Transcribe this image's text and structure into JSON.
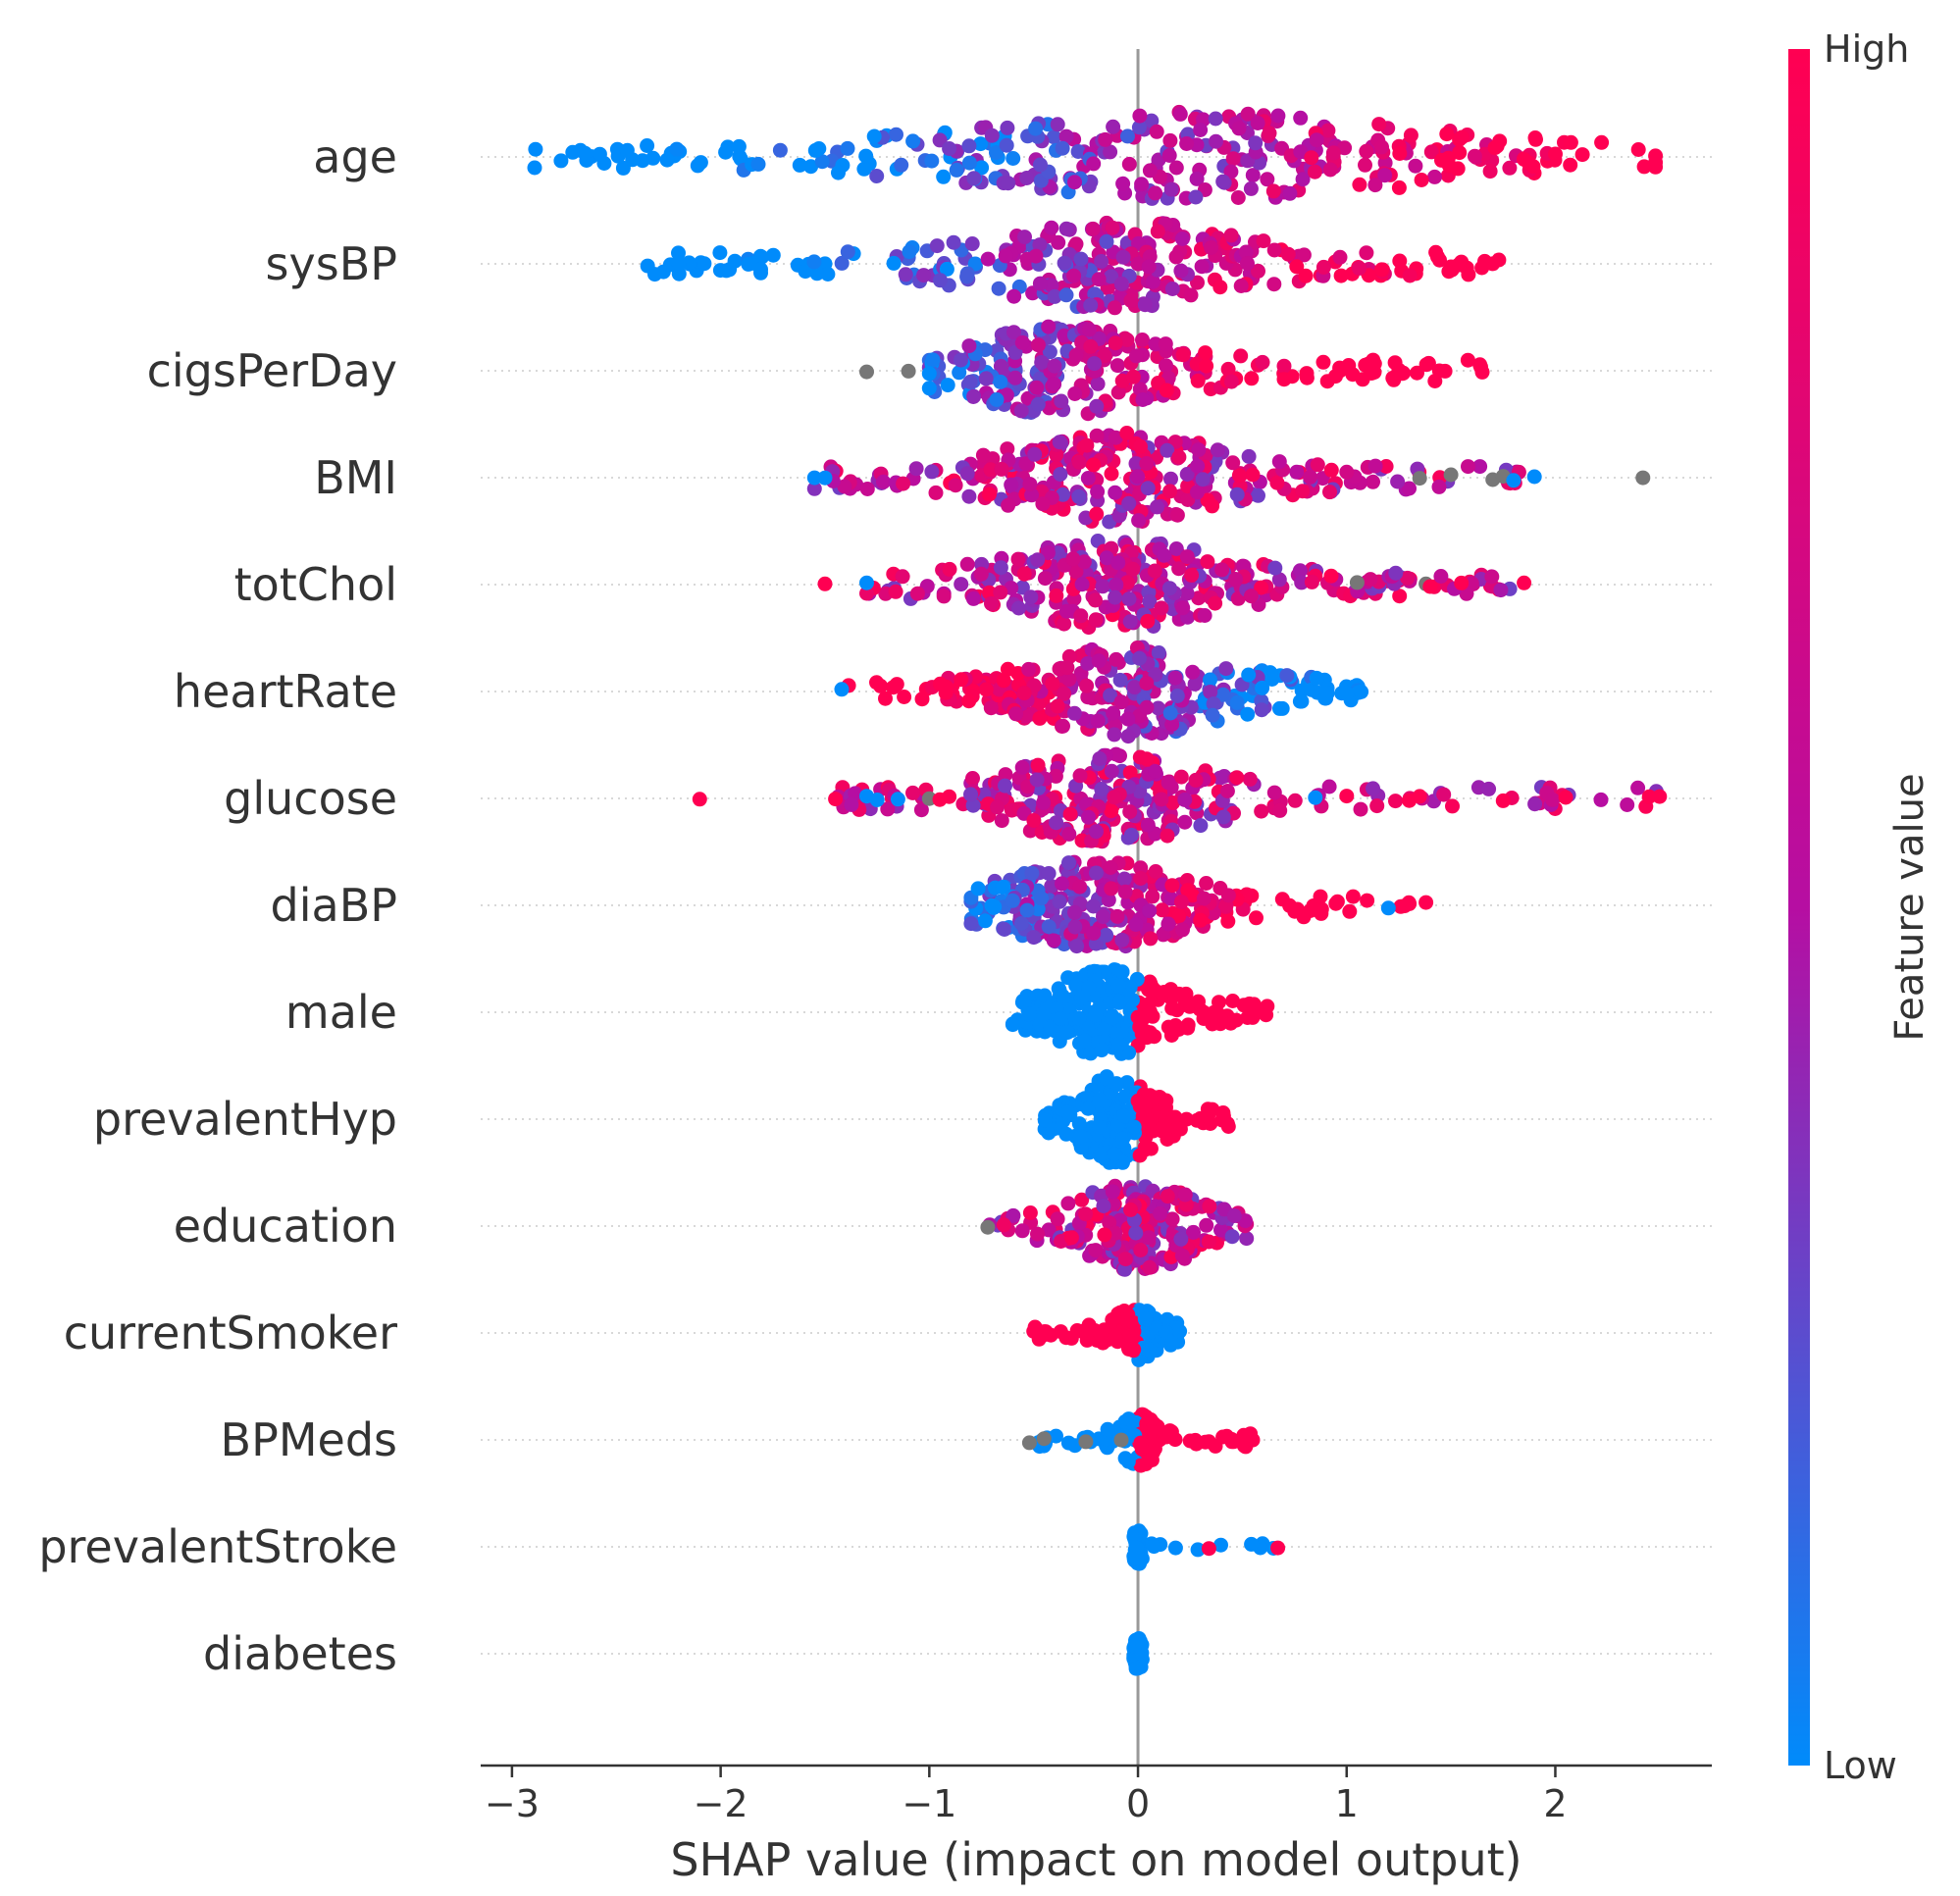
{
  "chart_data": {
    "type": "scatter",
    "subtype": "shap-beeswarm",
    "xlabel": "SHAP value (impact on model output)",
    "xlim": [
      -3.15,
      2.75
    ],
    "xticks": [
      -3,
      -2,
      -1,
      0,
      1,
      2
    ],
    "xtick_labels": [
      "−3",
      "−2",
      "−1",
      "0",
      "1",
      "2"
    ],
    "zero_line": true,
    "grid": false,
    "row_guides": "dotted",
    "colorbar": {
      "title": "Feature value",
      "high_label": "High",
      "low_label": "Low",
      "low_color": "#008bfb",
      "mid_color": "#b60ea2",
      "high_color": "#ff0052",
      "missing_color": "#777777"
    },
    "features": [
      {
        "name": "age",
        "min": -2.9,
        "max": 2.48,
        "spread": 0.85,
        "peak": 0.25,
        "color_trend": "positive",
        "density": 330,
        "extra": [
          [
            2.48,
            1.0
          ],
          [
            2.13,
            1.0
          ],
          [
            2.0,
            1.0
          ],
          [
            1.85,
            1.0
          ]
        ]
      },
      {
        "name": "sysBP",
        "min": -2.35,
        "max": 1.75,
        "spread": 0.45,
        "peak": -0.15,
        "color_trend": "positive",
        "density": 300,
        "extra": [
          [
            -2.35,
            0.0
          ],
          [
            -2.2,
            0.0
          ],
          [
            1.7,
            1.0
          ],
          [
            1.55,
            1.0
          ],
          [
            1.5,
            1.0
          ]
        ]
      },
      {
        "name": "cigsPerDay",
        "min": -1.0,
        "max": 1.65,
        "spread": 0.35,
        "peak": -0.35,
        "color_trend": "positive",
        "density": 260,
        "extra": [
          [
            -1.3,
            null
          ],
          [
            -1.1,
            null
          ],
          [
            -1.0,
            0.0
          ],
          [
            1.25,
            1.0
          ],
          [
            1.65,
            1.0
          ]
        ]
      },
      {
        "name": "BMI",
        "min": -1.55,
        "max": 1.9,
        "spread": 0.4,
        "peak": -0.1,
        "color_trend": "mixed",
        "density": 300,
        "extra": [
          [
            -1.55,
            0.0
          ],
          [
            -1.5,
            0.0
          ],
          [
            1.35,
            null
          ],
          [
            1.5,
            null
          ],
          [
            1.7,
            null
          ],
          [
            1.75,
            null
          ],
          [
            1.8,
            0.0
          ],
          [
            1.9,
            0.0
          ],
          [
            2.42,
            null
          ]
        ]
      },
      {
        "name": "totChol",
        "min": -1.3,
        "max": 1.85,
        "spread": 0.4,
        "peak": -0.1,
        "color_trend": "mixed",
        "density": 300,
        "extra": [
          [
            -1.5,
            1.0
          ],
          [
            -1.3,
            0.0
          ],
          [
            1.05,
            null
          ],
          [
            1.38,
            null
          ],
          [
            1.4,
            1.0
          ],
          [
            1.55,
            1.0
          ],
          [
            1.85,
            1.0
          ]
        ]
      },
      {
        "name": "heartRate",
        "min": -1.4,
        "max": 1.07,
        "spread": 0.35,
        "peak": -0.05,
        "color_trend": "negative",
        "density": 290,
        "extra": [
          [
            -1.42,
            0.0
          ],
          [
            1.07,
            0.0
          ],
          [
            1.0,
            0.0
          ]
        ]
      },
      {
        "name": "glucose",
        "min": -1.45,
        "max": 2.5,
        "spread": 0.35,
        "peak": -0.15,
        "color_trend": "mixed",
        "density": 290,
        "extra": [
          [
            -2.1,
            1.0
          ],
          [
            -1.45,
            1.0
          ],
          [
            -1.3,
            0.0
          ],
          [
            -1.25,
            0.0
          ],
          [
            -1.15,
            0.0
          ],
          [
            -1.0,
            null
          ],
          [
            -0.95,
            1.0
          ],
          [
            0.85,
            0.0
          ],
          [
            1.0,
            1.0
          ],
          [
            1.3,
            1.0
          ],
          [
            1.35,
            1.0
          ],
          [
            1.75,
            1.0
          ],
          [
            2.05,
            1.0
          ],
          [
            2.45,
            1.0
          ],
          [
            2.5,
            1.0
          ]
        ]
      },
      {
        "name": "diaBP",
        "min": -0.8,
        "max": 1.38,
        "spread": 0.3,
        "peak": -0.2,
        "color_trend": "positive",
        "density": 270,
        "extra": [
          [
            1.2,
            0.0
          ],
          [
            1.3,
            1.0
          ],
          [
            1.38,
            1.0
          ]
        ]
      },
      {
        "name": "male",
        "min": -0.6,
        "max": 0.65,
        "spread": 0.18,
        "peak": -0.15,
        "color_trend": "binary",
        "density": 260,
        "extra": [],
        "split": 0.0
      },
      {
        "name": "prevalentHyp",
        "min": -0.45,
        "max": 0.45,
        "spread": 0.12,
        "peak": -0.1,
        "color_trend": "binary",
        "density": 200,
        "extra": [],
        "split": 0.0
      },
      {
        "name": "education",
        "min": -0.72,
        "max": 0.52,
        "spread": 0.2,
        "peak": 0.0,
        "color_trend": "mixed",
        "density": 200,
        "extra": [
          [
            -0.72,
            null
          ]
        ]
      },
      {
        "name": "currentSmoker",
        "min": -0.5,
        "max": 0.2,
        "spread": 0.08,
        "peak": 0.0,
        "color_trend": "binary-neg",
        "density": 120,
        "extra": [
          [
            -0.5,
            1.0
          ],
          [
            -0.45,
            1.0
          ],
          [
            0.2,
            0.0
          ]
        ]
      },
      {
        "name": "BPMeds",
        "min": -0.52,
        "max": 0.55,
        "spread": 0.06,
        "peak": 0.0,
        "color_trend": "binary",
        "density": 120,
        "extra": [
          [
            -0.52,
            null
          ],
          [
            -0.45,
            null
          ],
          [
            -0.25,
            null
          ],
          [
            -0.08,
            null
          ],
          [
            0.55,
            1.0
          ],
          [
            0.45,
            1.0
          ]
        ]
      },
      {
        "name": "prevalentStroke",
        "min": -0.02,
        "max": 0.67,
        "spread": 0.01,
        "peak": 0.0,
        "color_trend": "low-only",
        "density": 80,
        "extra": [
          [
            0.34,
            1.0
          ],
          [
            0.67,
            1.0
          ]
        ]
      },
      {
        "name": "diabetes",
        "min": -0.02,
        "max": 0.02,
        "spread": 0.01,
        "peak": 0.0,
        "color_trend": "low-only",
        "density": 70,
        "extra": []
      }
    ]
  }
}
